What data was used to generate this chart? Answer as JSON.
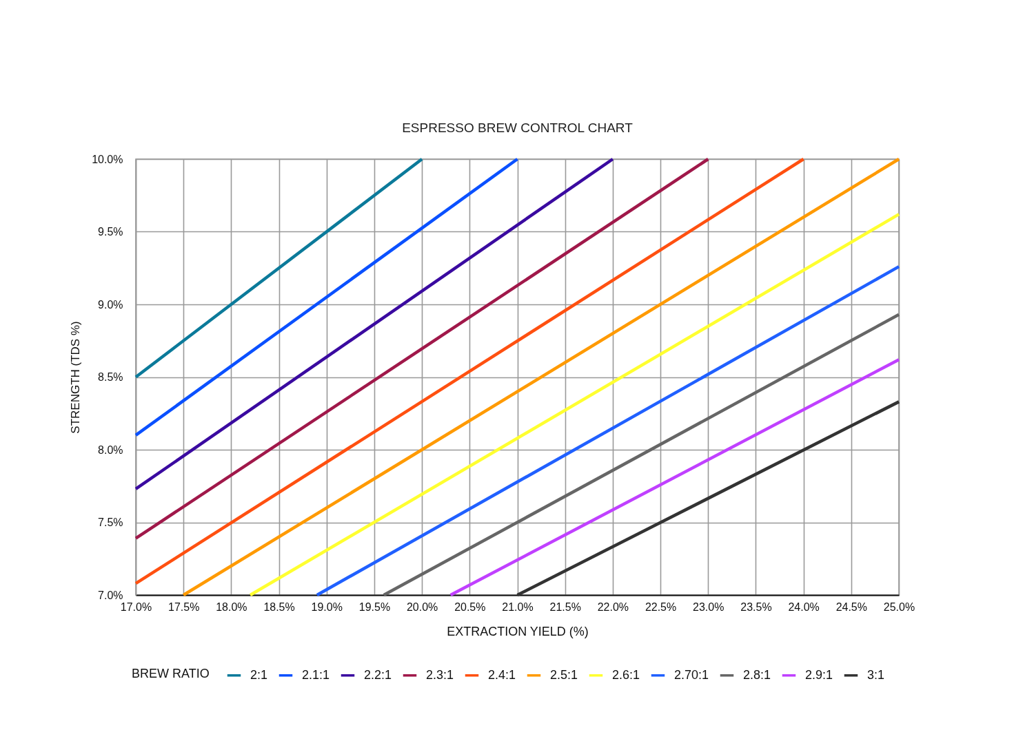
{
  "chart_data": {
    "type": "line",
    "title": "ESPRESSO BREW CONTROL CHART",
    "xlabel": "EXTRACTION YIELD (%)",
    "ylabel": "STRENGTH (TDS %)",
    "legend_title": "BREW RATIO",
    "series": [
      {
        "name": "2:1",
        "color": "#0b7a9a",
        "x": [
          17,
          20
        ],
        "values": [
          8.5,
          10
        ]
      },
      {
        "name": "2.1:1",
        "color": "#0a50ff",
        "x": [
          17,
          21
        ],
        "values": [
          8.1,
          10
        ]
      },
      {
        "name": "2.2:1",
        "color": "#3a0aa0",
        "x": [
          17,
          22
        ],
        "values": [
          7.73,
          10
        ]
      },
      {
        "name": "2.3:1",
        "color": "#a0184a",
        "x": [
          17,
          23
        ],
        "values": [
          7.39,
          10
        ]
      },
      {
        "name": "2.4:1",
        "color": "#ff5010",
        "x": [
          17,
          24
        ],
        "values": [
          7.08,
          10
        ]
      },
      {
        "name": "2.5:1",
        "color": "#ff9a00",
        "x": [
          17.5,
          25
        ],
        "values": [
          7,
          10
        ]
      },
      {
        "name": "2.6:1",
        "color": "#ffff30",
        "x": [
          18.2,
          25
        ],
        "values": [
          7,
          9.62
        ]
      },
      {
        "name": "2.70:1",
        "color": "#2060ff",
        "x": [
          18.9,
          25
        ],
        "values": [
          7,
          9.26
        ]
      },
      {
        "name": "2.8:1",
        "color": "#666666",
        "x": [
          19.6,
          25
        ],
        "values": [
          7,
          8.93
        ]
      },
      {
        "name": "2.9:1",
        "color": "#c040ff",
        "x": [
          20.3,
          25
        ],
        "values": [
          7,
          8.62
        ]
      },
      {
        "name": "3:1",
        "color": "#333333",
        "x": [
          21,
          25
        ],
        "values": [
          7,
          8.33
        ]
      }
    ],
    "xlim": [
      17,
      25
    ],
    "ylim": [
      7,
      10
    ],
    "xticks": [
      {
        "value": 17,
        "label": "17.0%"
      },
      {
        "value": 17.5,
        "label": "17.5%"
      },
      {
        "value": 18,
        "label": "18.0%"
      },
      {
        "value": 18.5,
        "label": "18.5%"
      },
      {
        "value": 19,
        "label": "19.0%"
      },
      {
        "value": 19.5,
        "label": "19.5%"
      },
      {
        "value": 20,
        "label": "20.0%"
      },
      {
        "value": 20.5,
        "label": "20.5%"
      },
      {
        "value": 21,
        "label": "21.0%"
      },
      {
        "value": 21.5,
        "label": "21.5%"
      },
      {
        "value": 22,
        "label": "22.0%"
      },
      {
        "value": 22.5,
        "label": "22.5%"
      },
      {
        "value": 23,
        "label": "23.0%"
      },
      {
        "value": 23.5,
        "label": "23.5%"
      },
      {
        "value": 24,
        "label": "24.0%"
      },
      {
        "value": 24.5,
        "label": "24.5%"
      },
      {
        "value": 25,
        "label": "25.0%"
      }
    ],
    "yticks": [
      {
        "value": 7,
        "label": "7.0%"
      },
      {
        "value": 7.5,
        "label": "7.5%"
      },
      {
        "value": 8,
        "label": "8.0%"
      },
      {
        "value": 8.5,
        "label": "8.5%"
      },
      {
        "value": 9,
        "label": "9.0%"
      },
      {
        "value": 9.5,
        "label": "9.5%"
      },
      {
        "value": 10,
        "label": "10.0%"
      }
    ],
    "grid": true,
    "legend": "bottom",
    "line_style": "solid"
  }
}
